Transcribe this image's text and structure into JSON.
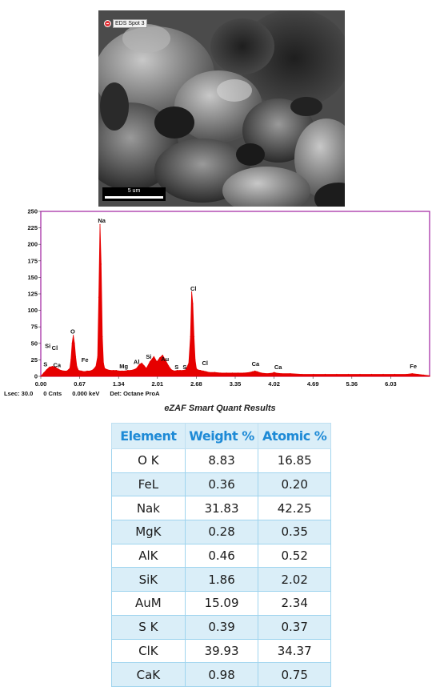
{
  "sem_image": {
    "spot_label": "EDS Spot 3",
    "scale_bar_label": "5 um"
  },
  "chart_data": {
    "type": "line",
    "title": "",
    "xlabel": "",
    "ylabel": "",
    "xlim": [
      0.0,
      6.7
    ],
    "ylim": [
      0,
      250
    ],
    "x_ticks": [
      "0.00",
      "0.67",
      "1.34",
      "2.01",
      "2.68",
      "3.35",
      "4.02",
      "4.69",
      "5.36",
      "6.03"
    ],
    "y_ticks": [
      "0",
      "25",
      "50",
      "75",
      "100",
      "125",
      "150",
      "175",
      "200",
      "225",
      "250"
    ],
    "series": [
      {
        "x": [
          0.0,
          0.05,
          0.1,
          0.15,
          0.2,
          0.25,
          0.28,
          0.3,
          0.32,
          0.35,
          0.4,
          0.45,
          0.5,
          0.52,
          0.54,
          0.56,
          0.58,
          0.6,
          0.62,
          0.65,
          0.7,
          0.75,
          0.8,
          0.85,
          0.9,
          0.95,
          0.98,
          1.0,
          1.02,
          1.04,
          1.06,
          1.08,
          1.1,
          1.15,
          1.2,
          1.25,
          1.3,
          1.35,
          1.4,
          1.45,
          1.5,
          1.55,
          1.6,
          1.65,
          1.7,
          1.74,
          1.78,
          1.82,
          1.88,
          1.95,
          2.0,
          2.05,
          2.1,
          2.15,
          2.2,
          2.25,
          2.3,
          2.35,
          2.4,
          2.45,
          2.5,
          2.55,
          2.58,
          2.6,
          2.62,
          2.64,
          2.66,
          2.68,
          2.7,
          2.75,
          2.8,
          2.85,
          2.9,
          3.0,
          3.1,
          3.2,
          3.3,
          3.4,
          3.5,
          3.6,
          3.65,
          3.69,
          3.73,
          3.8,
          3.9,
          4.0,
          4.02,
          4.05,
          4.15,
          4.3,
          4.5,
          4.7,
          4.9,
          5.1,
          5.3,
          5.5,
          5.7,
          5.9,
          6.1,
          6.3,
          6.4,
          6.5,
          6.6,
          6.7
        ],
        "y": [
          0,
          5,
          10,
          14,
          15,
          14,
          12,
          11,
          10,
          9,
          8,
          8,
          12,
          25,
          50,
          62,
          50,
          30,
          15,
          9,
          8,
          7,
          8,
          8,
          10,
          15,
          30,
          120,
          230,
          170,
          60,
          20,
          12,
          10,
          9,
          9,
          9,
          8,
          8,
          8,
          9,
          9,
          10,
          12,
          18,
          20,
          16,
          12,
          22,
          30,
          22,
          28,
          32,
          24,
          16,
          10,
          8,
          9,
          9,
          9,
          10,
          20,
          60,
          128,
          110,
          60,
          25,
          12,
          10,
          9,
          8,
          7,
          6,
          6,
          5,
          5,
          5,
          5,
          5,
          6,
          7,
          8,
          7,
          5,
          4,
          5,
          6,
          5,
          4,
          4,
          3,
          3,
          3,
          3,
          3,
          3,
          3,
          3,
          3,
          3,
          4,
          3,
          2,
          1
        ]
      }
    ],
    "annotations": [
      {
        "label": "Si",
        "x": 0.12,
        "y": 43
      },
      {
        "label": "Cl",
        "x": 0.24,
        "y": 40
      },
      {
        "label": "S",
        "x": 0.08,
        "y": 15
      },
      {
        "label": "Ca",
        "x": 0.28,
        "y": 14
      },
      {
        "label": "O",
        "x": 0.55,
        "y": 65
      },
      {
        "label": "Fe",
        "x": 0.76,
        "y": 22
      },
      {
        "label": "Na",
        "x": 1.05,
        "y": 233
      },
      {
        "label": "Mg",
        "x": 1.43,
        "y": 12
      },
      {
        "label": "Al",
        "x": 1.65,
        "y": 19
      },
      {
        "label": "Si",
        "x": 1.86,
        "y": 27
      },
      {
        "label": "Au",
        "x": 2.14,
        "y": 23
      },
      {
        "label": "S",
        "x": 2.34,
        "y": 11
      },
      {
        "label": "S",
        "x": 2.48,
        "y": 11
      },
      {
        "label": "Cl",
        "x": 2.63,
        "y": 130
      },
      {
        "label": "Cl",
        "x": 2.83,
        "y": 17
      },
      {
        "label": "Ca",
        "x": 3.7,
        "y": 16
      },
      {
        "label": "Ca",
        "x": 4.09,
        "y": 11
      },
      {
        "label": "Fe",
        "x": 6.42,
        "y": 12
      }
    ],
    "color": "#e60000",
    "grid": false
  },
  "footer": {
    "lsec": "Lsec: 30.0",
    "counts": "0 Cnts",
    "kev": "0.000 keV",
    "detector": "Det: Octane ProA"
  },
  "table": {
    "title": "eZAF Smart Quant Results",
    "headers": [
      "Element",
      "Weight %",
      "Atomic %"
    ],
    "rows": [
      [
        "O K",
        "8.83",
        "16.85"
      ],
      [
        "FeL",
        "0.36",
        "0.20"
      ],
      [
        "Nak",
        "31.83",
        "42.25"
      ],
      [
        "MgK",
        "0.28",
        "0.35"
      ],
      [
        "AlK",
        "0.46",
        "0.52"
      ],
      [
        "SiK",
        "1.86",
        "2.02"
      ],
      [
        "AuM",
        "15.09",
        "2.34"
      ],
      [
        "S K",
        "0.39",
        "0.37"
      ],
      [
        "ClK",
        "39.93",
        "34.37"
      ],
      [
        "CaK",
        "0.98",
        "0.75"
      ]
    ],
    "header_color": "#1e8ad6",
    "stripe_color": "#daeef8"
  }
}
